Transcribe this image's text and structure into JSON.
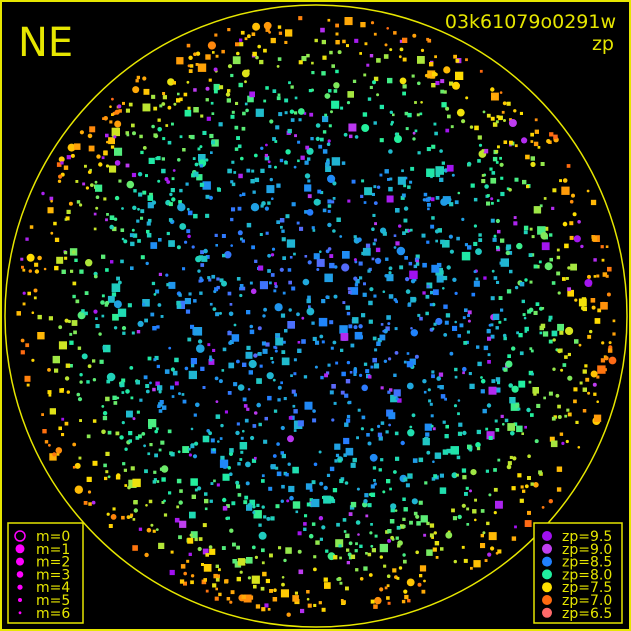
{
  "chart_data": {
    "type": "scatter",
    "title": "03k61079o0291w",
    "subtitle": "zp",
    "corner_label": "NE",
    "frame_color": "#e6e600",
    "background": "#000000",
    "size_legend": {
      "placement": "bottom-left",
      "entries": [
        {
          "label": "m=0",
          "style": "ring"
        },
        {
          "label": "m=1",
          "style": "dot"
        },
        {
          "label": "m=2",
          "style": "dot"
        },
        {
          "label": "m=3",
          "style": "dot"
        },
        {
          "label": "m=4",
          "style": "dot"
        },
        {
          "label": "m=5",
          "style": "dot"
        },
        {
          "label": "m=6",
          "style": "dot"
        }
      ],
      "color": "#ff00ff"
    },
    "color_legend": {
      "placement": "bottom-right",
      "entries": [
        {
          "label": "zp=9.5",
          "value": 9.5,
          "color": "#a010f0"
        },
        {
          "label": "zp=9.0",
          "value": 9.0,
          "color": "#c040f0"
        },
        {
          "label": "zp=8.5",
          "value": 8.5,
          "color": "#2080ff"
        },
        {
          "label": "zp=8.0",
          "value": 8.0,
          "color": "#20f0a0"
        },
        {
          "label": "zp=7.5",
          "value": 7.5,
          "color": "#ffe000"
        },
        {
          "label": "zp=7.0",
          "value": 7.0,
          "color": "#ff6a10"
        },
        {
          "label": "zp=6.5",
          "value": 6.5,
          "color": "#ff6a6a"
        }
      ]
    },
    "grid": false
  }
}
